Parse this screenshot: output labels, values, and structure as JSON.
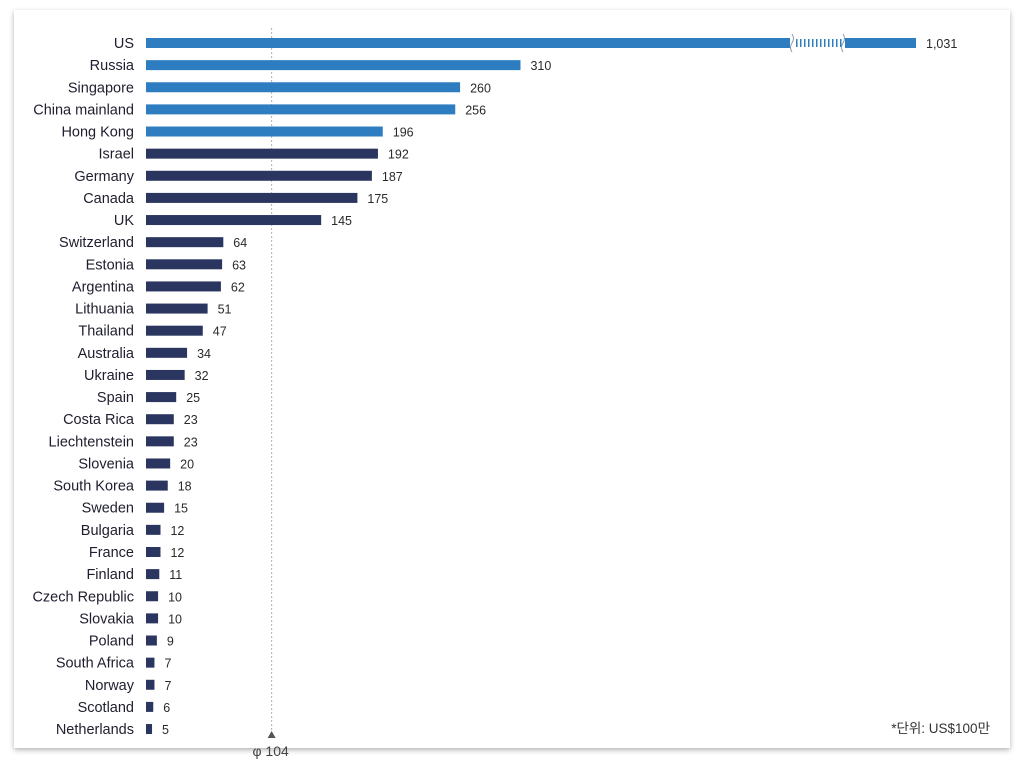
{
  "chart_data": {
    "type": "bar",
    "orientation": "horizontal",
    "categories": [
      "US",
      "Russia",
      "Singapore",
      "China mainland",
      "Hong Kong",
      "Israel",
      "Germany",
      "Canada",
      "UK",
      "Switzerland",
      "Estonia",
      "Argentina",
      "Lithuania",
      "Thailand",
      "Australia",
      "Ukraine",
      "Spain",
      "Costa Rica",
      "Liechtenstein",
      "Slovenia",
      "South Korea",
      "Sweden",
      "Bulgaria",
      "France",
      "Finland",
      "Czech Republic",
      "Slovakia",
      "Poland",
      "South Africa",
      "Norway",
      "Scotland",
      "Netherlands"
    ],
    "values": [
      1031,
      310,
      260,
      256,
      196,
      192,
      187,
      175,
      145,
      64,
      63,
      62,
      51,
      47,
      34,
      32,
      25,
      23,
      23,
      20,
      18,
      15,
      12,
      12,
      11,
      10,
      10,
      9,
      7,
      7,
      6,
      5
    ],
    "value_labels": [
      "1,031",
      "310",
      "260",
      "256",
      "196",
      "192",
      "187",
      "175",
      "145",
      "64",
      "63",
      "62",
      "51",
      "47",
      "34",
      "32",
      "25",
      "23",
      "23",
      "20",
      "18",
      "15",
      "12",
      "12",
      "11",
      "10",
      "10",
      "9",
      "7",
      "7",
      "6",
      "5"
    ],
    "highlight_count": 5,
    "colors": {
      "highlight": "#2f7dc1",
      "default": "#2a3560",
      "break_stripe": "#2f7dc1",
      "reference_line": "#b0b0b0",
      "marker": "#555555"
    },
    "axis_break": {
      "category": "US"
    },
    "reference_line": {
      "value": 104,
      "label": "φ 104"
    },
    "unit_note": "*단위: US$100만",
    "title": "",
    "xlabel": "",
    "ylabel": "",
    "grid": false,
    "legend": "none"
  }
}
